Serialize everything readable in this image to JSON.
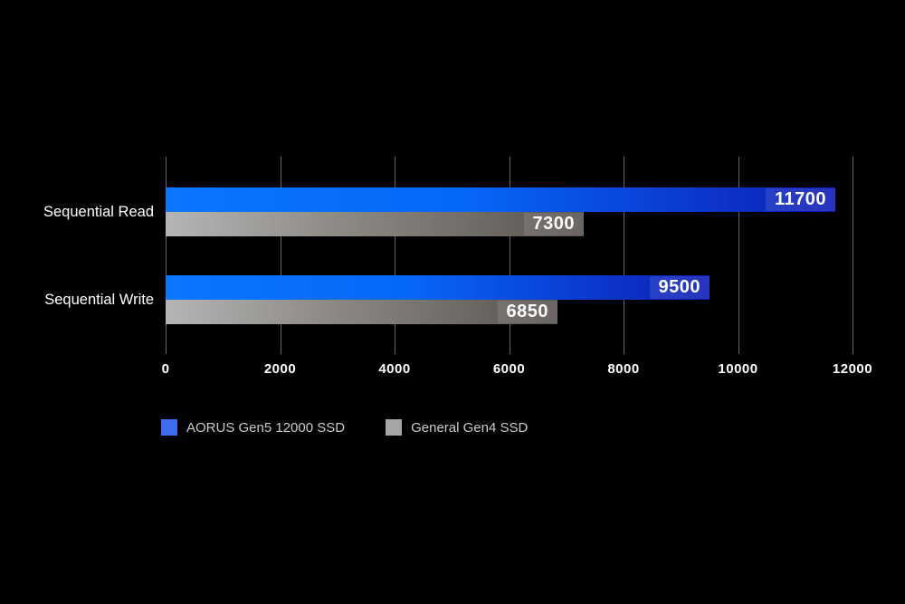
{
  "background": "#000000",
  "chart_data": {
    "type": "bar",
    "orientation": "horizontal",
    "title": "",
    "categories": [
      "Sequential Read",
      "Sequential Write"
    ],
    "series": [
      {
        "name": "AORUS Gen5 12000 SSD",
        "values": [
          11700,
          9500
        ],
        "gradient_start": "#0b76ff",
        "gradient_mid": "#0667f8",
        "gradient_end": "#0e1bb2",
        "legend_color": "#3e6ef0"
      },
      {
        "name": "General Gen4 SSD",
        "values": [
          7300,
          6850
        ],
        "gradient_start": "#b5b5b5",
        "gradient_mid": "#8a8681",
        "gradient_end": "#585350",
        "legend_color": "#a6a6a6"
      }
    ],
    "xlim": [
      0,
      12000
    ],
    "x_ticks": [
      0,
      2000,
      4000,
      6000,
      8000,
      10000,
      12000
    ],
    "grid": "vertical-gridlines-on",
    "legend_position": "bottom-left",
    "value_labels": "inside-end"
  },
  "colors": {
    "gridline": "#666666",
    "tick_text": "#ffffff",
    "category_text": "#ffffff",
    "value_text": "#ffffff",
    "legend_text": "#c9cccd",
    "value_label_overlay": "rgba(255,255,255,0.11)"
  }
}
